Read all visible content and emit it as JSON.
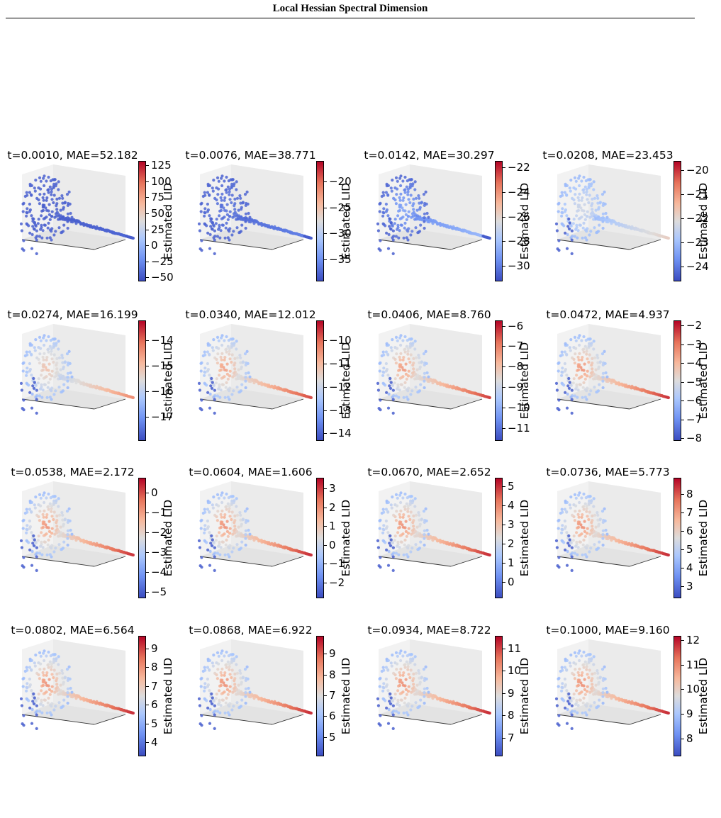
{
  "header": {
    "title": "Local Hessian Spectral Dimension"
  },
  "figure": {
    "colorbar_label": "Estimated LID",
    "panels": [
      {
        "title": "t=0.0010, MAE=52.182",
        "ticks": [
          "125",
          "100",
          "75",
          "50",
          "25",
          "0",
          "−25",
          "−50"
        ],
        "tick_values": [
          125,
          100,
          75,
          50,
          25,
          0,
          -25,
          -50
        ],
        "range": [
          -55,
          133
        ],
        "tip_mode": 0.05
      },
      {
        "title": "t=0.0076, MAE=38.771",
        "ticks": [
          "−20",
          "−25",
          "−30",
          "−35"
        ],
        "tick_values": [
          -20,
          -25,
          -30,
          -35
        ],
        "range": [
          -39,
          -16
        ],
        "tip_mode": 0.12
      },
      {
        "title": "t=0.0142, MAE=30.297",
        "ticks": [
          "−22",
          "−24",
          "−26",
          "−28",
          "−30"
        ],
        "tick_values": [
          -22,
          -24,
          -26,
          -28,
          -30
        ],
        "range": [
          -31.2,
          -21.4
        ],
        "tip_mode": 0.3
      },
      {
        "title": "t=0.0208, MAE=23.453",
        "ticks": [
          "−20",
          "−21",
          "−22",
          "−23",
          "−24"
        ],
        "tick_values": [
          -20,
          -21,
          -22,
          -23,
          -24
        ],
        "range": [
          -24.6,
          -19.6
        ],
        "tip_mode": 0.55
      },
      {
        "title": "t=0.0274, MAE=16.199",
        "ticks": [
          "−14",
          "−15",
          "−16",
          "−17"
        ],
        "tick_values": [
          -14,
          -15,
          -16,
          -17
        ],
        "range": [
          -17.9,
          -13.2
        ],
        "tip_mode": 0.75
      },
      {
        "title": "t=0.0340, MAE=12.012",
        "ticks": [
          "−10",
          "−11",
          "−12",
          "−13",
          "−14"
        ],
        "tick_values": [
          -10,
          -11,
          -12,
          -13,
          -14
        ],
        "range": [
          -14.3,
          -9.1
        ],
        "tip_mode": 0.88
      },
      {
        "title": "t=0.0406, MAE=8.760",
        "ticks": [
          "−6",
          "−7",
          "−8",
          "−9",
          "−10",
          "−11"
        ],
        "tick_values": [
          -6,
          -7,
          -8,
          -9,
          -10,
          -11
        ],
        "range": [
          -11.6,
          -5.7
        ],
        "tip_mode": 0.9
      },
      {
        "title": "t=0.0472, MAE=4.937",
        "ticks": [
          "−2",
          "−3",
          "−4",
          "−5",
          "−6",
          "−7",
          "−8"
        ],
        "tick_values": [
          -2,
          -3,
          -4,
          -5,
          -6,
          -7,
          -8
        ],
        "range": [
          -8.1,
          -1.7
        ],
        "tip_mode": 0.92
      },
      {
        "title": "t=0.0538, MAE=2.172",
        "ticks": [
          "0",
          "−1",
          "−2",
          "−3",
          "−4",
          "−5"
        ],
        "tick_values": [
          0,
          -1,
          -2,
          -3,
          -4,
          -5
        ],
        "range": [
          -5.3,
          0.8
        ],
        "tip_mode": 0.92
      },
      {
        "title": "t=0.0604, MAE=1.606",
        "ticks": [
          "3",
          "2",
          "1",
          "0",
          "−1",
          "−2"
        ],
        "tick_values": [
          3,
          2,
          1,
          0,
          -1,
          -2
        ],
        "range": [
          -2.8,
          3.6
        ],
        "tip_mode": 0.93
      },
      {
        "title": "t=0.0670, MAE=2.652",
        "ticks": [
          "5",
          "4",
          "3",
          "2",
          "1",
          "0"
        ],
        "tick_values": [
          5,
          4,
          3,
          2,
          1,
          0
        ],
        "range": [
          -0.8,
          5.5
        ],
        "tip_mode": 0.93
      },
      {
        "title": "t=0.0736, MAE=5.773",
        "ticks": [
          "8",
          "7",
          "6",
          "5",
          "4",
          "3"
        ],
        "tick_values": [
          8,
          7,
          6,
          5,
          4,
          3
        ],
        "range": [
          2.4,
          8.9
        ],
        "tip_mode": 0.93
      },
      {
        "title": "t=0.0802, MAE=6.564",
        "ticks": [
          "9",
          "8",
          "7",
          "6",
          "5",
          "4"
        ],
        "tick_values": [
          9,
          8,
          7,
          6,
          5,
          4
        ],
        "range": [
          3.3,
          9.7
        ],
        "tip_mode": 0.93
      },
      {
        "title": "t=0.0868, MAE=6.922",
        "ticks": [
          "9",
          "8",
          "7",
          "6",
          "5"
        ],
        "tick_values": [
          9,
          8,
          7,
          6,
          5
        ],
        "range": [
          4.1,
          9.9
        ],
        "tip_mode": 0.93
      },
      {
        "title": "t=0.0934, MAE=8.722",
        "ticks": [
          "11",
          "10",
          "9",
          "8",
          "7"
        ],
        "tick_values": [
          11,
          10,
          9,
          8,
          7
        ],
        "range": [
          6.2,
          11.6
        ],
        "tip_mode": 0.93
      },
      {
        "title": "t=0.1000, MAE=9.160",
        "ticks": [
          "12",
          "11",
          "10",
          "9",
          "8"
        ],
        "tick_values": [
          12,
          11,
          10,
          9,
          8
        ],
        "range": [
          7.3,
          12.2
        ],
        "tip_mode": 0.93
      }
    ]
  },
  "caption": {
    "text": ""
  }
}
